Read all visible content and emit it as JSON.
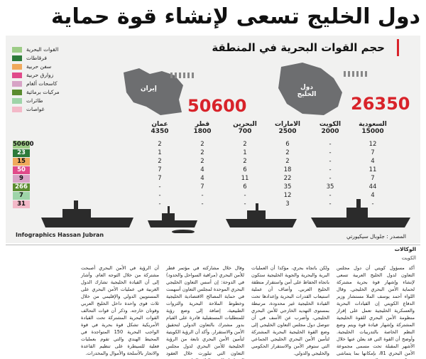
{
  "headline": "دول الخليج تسعى لإنشاء قوة حماية بحرية مشتركة",
  "infographic": {
    "subtitle": "حجم القوات البحرية في المنطقة",
    "legend": [
      {
        "label": "القوات البحرية",
        "color": "#9ccc86"
      },
      {
        "label": "فرقاطات",
        "color": "#2d7a3a"
      },
      {
        "label": "سفن حربية",
        "color": "#f0a95c"
      },
      {
        "label": "زوارق حربية",
        "color": "#e04a8a"
      },
      {
        "label": "كاسحات ألغام",
        "color": "#d7a3c6"
      },
      {
        "label": "مركبات برمائية",
        "color": "#5a8b2f"
      },
      {
        "label": "طائرات",
        "color": "#9ed4a8"
      },
      {
        "label": "غواصات",
        "color": "#f3b9c8"
      }
    ],
    "iran": {
      "label": "إيران",
      "total": "50600"
    },
    "gulf": {
      "label": "دول الخليج",
      "total": "26350"
    },
    "countries": [
      {
        "name": "السعودية",
        "personnel": "15000",
        "values": [
          "12",
          "7",
          "4",
          "11",
          "7",
          "44",
          "4",
          "-"
        ]
      },
      {
        "name": "الكويت",
        "personnel": "2000",
        "values": [
          "-",
          "-",
          "-",
          "-",
          "-",
          "35",
          "-",
          "-"
        ]
      },
      {
        "name": "الامارات",
        "personnel": "2500",
        "values": [
          "6",
          "2",
          "2",
          "18",
          "22",
          "35",
          "12",
          "3"
        ]
      },
      {
        "name": "البحرين",
        "personnel": "700",
        "values": [
          "2",
          "1",
          "2",
          "6",
          "11",
          "6",
          "-",
          "-"
        ]
      },
      {
        "name": "قطر",
        "personnel": "1800",
        "values": [
          "2",
          "2",
          "2",
          "4",
          "4",
          "7",
          "-",
          "-"
        ]
      },
      {
        "name": "عمان",
        "personnel": "4350",
        "values": [
          "2",
          "1",
          "2",
          "7",
          "7",
          "-",
          "-",
          "-"
        ]
      }
    ],
    "iran_values": [
      "50600",
      "23",
      "15",
      "50",
      "9",
      "266",
      "7",
      "31"
    ],
    "footer_left": "Infographics  Hassan Jubran",
    "footer_right": "المصدر : جلوبال سيكيورتي"
  },
  "agency": "الوكالات",
  "subagency": "الكويت",
  "article": {
    "columns": [
      "أكد مسؤول كويتي أن دول مجلس التعاون لدول الخليج العربية تسعى لإنشاء وإشهار قوة بحرية مشتركة لحماية الأمن البحري الخليجي. وقال اللواء أحمد يوسف الملا مستشار وزير الدفاع الكويتي إن القيادات البحرية والعسكرية الخليجية تعمل على إقرار منظومة الأمن البحري للقوة الخليجية المشتركة وإشهار قيادة قوة ويتم وضع النظم الخاصة بالتدريبات الخليجية. وأوضح أن القوة التي قد يعلن عنها خلال الأشهر المقبلة تحت مسمى مجموعة الأمن البحري 81، بإمكانها بما يتماشى مع تكوين قوة درع الجزيرة",
      "ولكن باتجاه بحري، مؤكدا أن العمليات البرية والبحرية والجوية الخليجية ستكون باتجاه الحفاظ على أمن واستقرار منطقة الخليج العربي. وأضاف أن عملية استيعاب القدرات البحرية وإعدادها تحت القيادة الخليجية غير محدودة، مرتبطة بمستوى التهديد الخارجي للأمن البحري الخليجي، وأضرب عن الأسف في أن تتوصل دول مجلس التعاون الخليجي إلى وضع القوة الخليجية البحرية المشتركة لتأمين الأمن البحري الخليجي الجماعي التي ستوفر الأمن والاستقرار الحكومي والخليجي والدولي.",
      "وقال خلال مشاركته في مؤتمر قطر للأمن البحري (مراقبة السواحل والحدود) في الدوحة: إن أسس التعاون الخليجي البحري الموحدة لمجلس التعاون أسهمت في حماية المصالح الاقتصادية الخليجية وخطوط الملاحة البحرية والثروات الطبيعية، إضافة إلى وضع رؤية للمتطلبات المستقبلية قادرة على القيام بدور مشترك بالتعاون الدولي لتحقيق الأمن والاستقرار. وأكد أن الرؤية الكويتية لتأمين الأمن البحري تابعة من الرؤية الخليجية للأمن البحري لدول مجلس التعاون التي تبلورت خلال العقود المتواصلة للعقود الثلاثة الماضية.",
      "أن الرؤية في الأمن البحري أصبحت مشتركة من خلال التوجه العام. وأشار إلى أن القيادة الخليجية تشارك الدول الغربية في عمليات الأمن البحري على المستويين الدولي والإقليمي من خلال ثلاث قوى واحدة داخل الخليج العربي وقوتان خارجه. وذكر أن قوات التحالف القوات البحرية المشتركة تحت القيادة الأمريكية تشكل قوة بحرية في قوة الواجب البحرية 150 المتواجدة في المحيط الهندي والتي تقوم بعمليات فعلية للسيطرة على تنظيم القاعدة والاتجار بالأسلحة والأموال والمخدرات."
    ]
  }
}
